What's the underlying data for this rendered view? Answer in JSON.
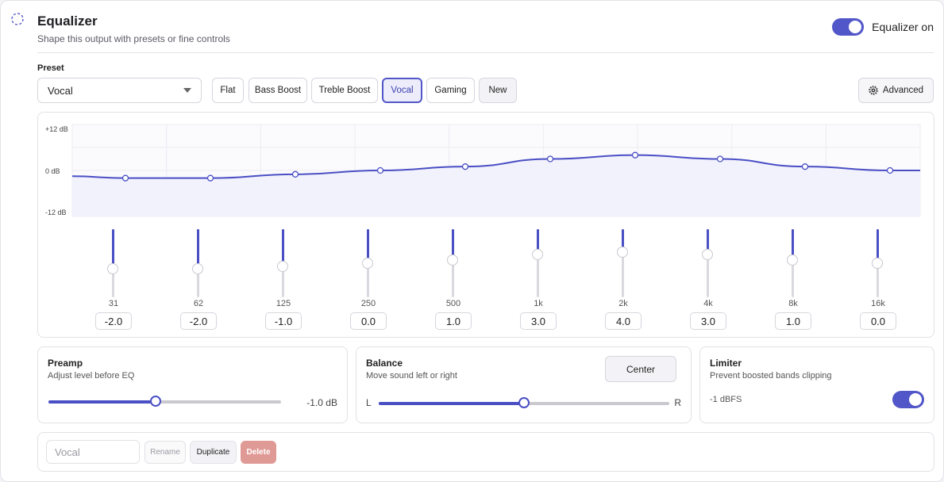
{
  "header": {
    "title": "Equalizer",
    "subtitle": "Shape this output with presets or fine controls",
    "toggle_label": "Equalizer on",
    "toggle_on": true
  },
  "preset": {
    "label": "Preset",
    "selected": "Vocal",
    "chips": [
      "Flat",
      "Bass Boost",
      "Treble Boost",
      "Vocal",
      "Gaming",
      "New"
    ],
    "active_chip": "Vocal",
    "advanced_label": "Advanced"
  },
  "graph": {
    "db_labels": [
      "+12 dB",
      "0 dB",
      "-12 dB"
    ],
    "range_db": [
      -12,
      12
    ]
  },
  "bands": [
    {
      "freq": "31",
      "value": "-2.0",
      "level": -2.0
    },
    {
      "freq": "62",
      "value": "-2.0",
      "level": -2.0
    },
    {
      "freq": "125",
      "value": "-1.0",
      "level": -1.0
    },
    {
      "freq": "250",
      "value": "0.0",
      "level": 0.0
    },
    {
      "freq": "500",
      "value": "1.0",
      "level": 1.0
    },
    {
      "freq": "1k",
      "value": "3.0",
      "level": 3.0
    },
    {
      "freq": "2k",
      "value": "4.0",
      "level": 4.0
    },
    {
      "freq": "4k",
      "value": "3.0",
      "level": 3.0
    },
    {
      "freq": "8k",
      "value": "1.0",
      "level": 1.0
    },
    {
      "freq": "16k",
      "value": "0.0",
      "level": 0.0
    }
  ],
  "preamp": {
    "title": "Preamp",
    "desc": "Adjust level before EQ",
    "value": "-1.0 dB",
    "fraction": 0.46
  },
  "balance": {
    "title": "Balance",
    "desc": "Move sound left or right",
    "center_label": "Center",
    "left": "L",
    "right": "R",
    "fraction": 0.5
  },
  "limiter": {
    "title": "Limiter",
    "desc": "Prevent boosted bands clipping",
    "value": "-1 dBFS",
    "on": true
  },
  "actions": {
    "name_placeholder": "Vocal",
    "rename": "Rename",
    "duplicate": "Duplicate",
    "delete": "Delete"
  },
  "colors": {
    "accent": "#5156c8",
    "delete": "#e09a96"
  }
}
